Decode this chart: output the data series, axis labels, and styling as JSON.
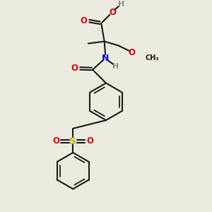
{
  "bg_color": "#ebebdf",
  "bond_color": "#1a1a1a",
  "bond_width": 1.5,
  "atom_colors": {
    "O": "#dd0000",
    "N": "#0000ee",
    "S": "#bbbb00",
    "H": "#888888",
    "C": "#1a1a1a"
  },
  "fs": 8.5,
  "fs_small": 7.5
}
